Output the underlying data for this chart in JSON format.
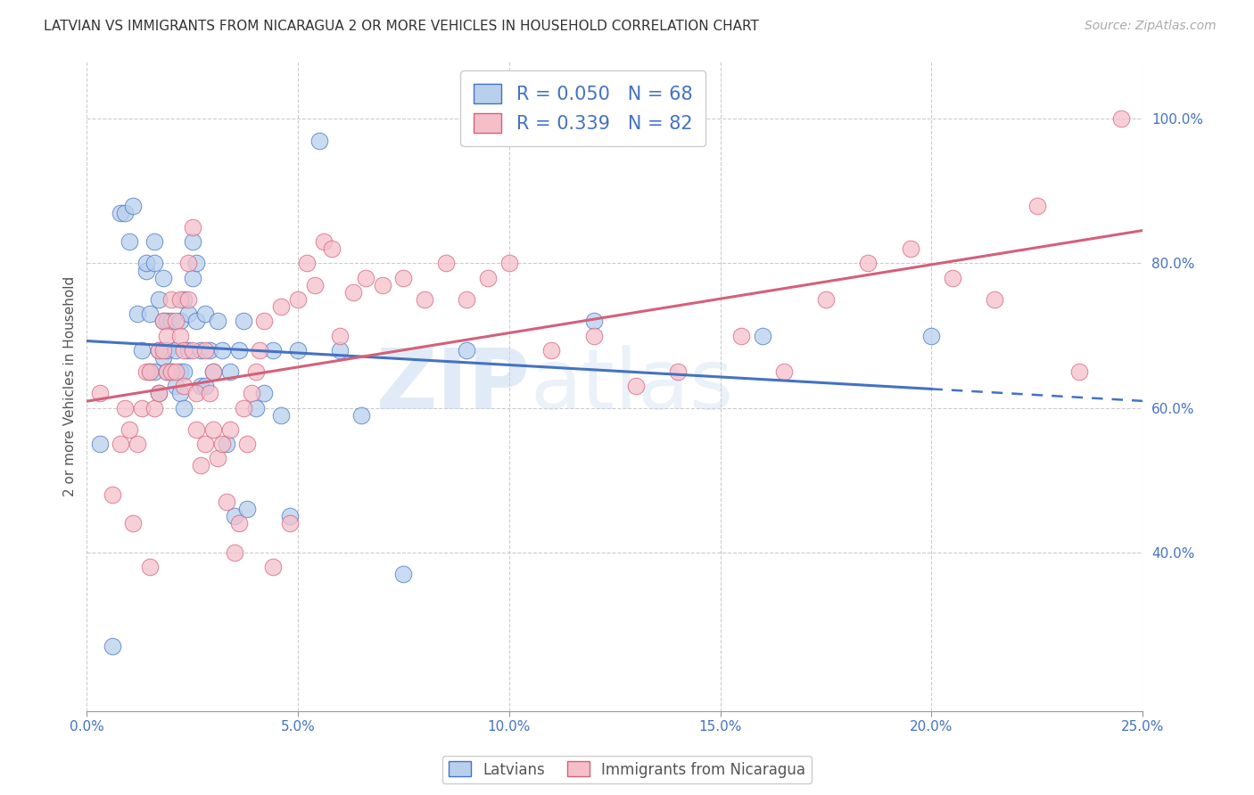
{
  "title": "LATVIAN VS IMMIGRANTS FROM NICARAGUA 2 OR MORE VEHICLES IN HOUSEHOLD CORRELATION CHART",
  "source": "Source: ZipAtlas.com",
  "ylabel_label": "2 or more Vehicles in Household",
  "xmin": 0.0,
  "xmax": 0.25,
  "ymin": 0.18,
  "ymax": 1.08,
  "legend_label1": "Latvians",
  "legend_label2": "Immigrants from Nicaragua",
  "r1": "0.050",
  "n1": "68",
  "r2": "0.339",
  "n2": "82",
  "color_blue": "#b8d0ec",
  "color_pink": "#f5bfca",
  "line_color_blue": "#4472c4",
  "line_color_pink": "#d4607a",
  "blue_scatter_x": [
    0.003,
    0.006,
    0.008,
    0.009,
    0.01,
    0.011,
    0.012,
    0.013,
    0.014,
    0.014,
    0.015,
    0.015,
    0.016,
    0.016,
    0.016,
    0.017,
    0.017,
    0.017,
    0.018,
    0.018,
    0.018,
    0.019,
    0.019,
    0.019,
    0.02,
    0.02,
    0.021,
    0.021,
    0.022,
    0.022,
    0.022,
    0.023,
    0.023,
    0.023,
    0.024,
    0.024,
    0.025,
    0.025,
    0.026,
    0.026,
    0.027,
    0.027,
    0.028,
    0.028,
    0.029,
    0.03,
    0.031,
    0.032,
    0.033,
    0.034,
    0.035,
    0.036,
    0.037,
    0.038,
    0.04,
    0.042,
    0.044,
    0.046,
    0.048,
    0.05,
    0.055,
    0.06,
    0.065,
    0.075,
    0.09,
    0.12,
    0.16,
    0.2
  ],
  "blue_scatter_y": [
    0.55,
    0.27,
    0.87,
    0.87,
    0.83,
    0.88,
    0.73,
    0.68,
    0.79,
    0.8,
    0.73,
    0.65,
    0.8,
    0.83,
    0.65,
    0.75,
    0.68,
    0.62,
    0.67,
    0.72,
    0.78,
    0.65,
    0.72,
    0.68,
    0.72,
    0.65,
    0.68,
    0.63,
    0.72,
    0.65,
    0.62,
    0.75,
    0.65,
    0.6,
    0.73,
    0.68,
    0.83,
    0.78,
    0.8,
    0.72,
    0.63,
    0.68,
    0.63,
    0.73,
    0.68,
    0.65,
    0.72,
    0.68,
    0.55,
    0.65,
    0.45,
    0.68,
    0.72,
    0.46,
    0.6,
    0.62,
    0.68,
    0.59,
    0.45,
    0.68,
    0.97,
    0.68,
    0.59,
    0.37,
    0.68,
    0.72,
    0.7,
    0.7
  ],
  "pink_scatter_x": [
    0.003,
    0.006,
    0.008,
    0.009,
    0.01,
    0.011,
    0.012,
    0.013,
    0.014,
    0.015,
    0.015,
    0.016,
    0.017,
    0.017,
    0.018,
    0.018,
    0.019,
    0.019,
    0.02,
    0.02,
    0.021,
    0.021,
    0.022,
    0.022,
    0.023,
    0.023,
    0.024,
    0.024,
    0.025,
    0.025,
    0.026,
    0.026,
    0.027,
    0.028,
    0.028,
    0.029,
    0.03,
    0.03,
    0.031,
    0.032,
    0.033,
    0.034,
    0.035,
    0.036,
    0.037,
    0.038,
    0.039,
    0.04,
    0.041,
    0.042,
    0.044,
    0.046,
    0.048,
    0.05,
    0.052,
    0.054,
    0.056,
    0.058,
    0.06,
    0.063,
    0.066,
    0.07,
    0.075,
    0.08,
    0.085,
    0.09,
    0.095,
    0.1,
    0.11,
    0.12,
    0.13,
    0.14,
    0.155,
    0.165,
    0.175,
    0.185,
    0.195,
    0.205,
    0.215,
    0.225,
    0.235,
    0.245
  ],
  "pink_scatter_y": [
    0.62,
    0.48,
    0.55,
    0.6,
    0.57,
    0.44,
    0.55,
    0.6,
    0.65,
    0.65,
    0.38,
    0.6,
    0.62,
    0.68,
    0.68,
    0.72,
    0.65,
    0.7,
    0.75,
    0.65,
    0.65,
    0.72,
    0.7,
    0.75,
    0.63,
    0.68,
    0.75,
    0.8,
    0.85,
    0.68,
    0.62,
    0.57,
    0.52,
    0.55,
    0.68,
    0.62,
    0.57,
    0.65,
    0.53,
    0.55,
    0.47,
    0.57,
    0.4,
    0.44,
    0.6,
    0.55,
    0.62,
    0.65,
    0.68,
    0.72,
    0.38,
    0.74,
    0.44,
    0.75,
    0.8,
    0.77,
    0.83,
    0.82,
    0.7,
    0.76,
    0.78,
    0.77,
    0.78,
    0.75,
    0.8,
    0.75,
    0.78,
    0.8,
    0.68,
    0.7,
    0.63,
    0.65,
    0.7,
    0.65,
    0.75,
    0.8,
    0.82,
    0.78,
    0.75,
    0.88,
    0.65,
    1.0
  ]
}
